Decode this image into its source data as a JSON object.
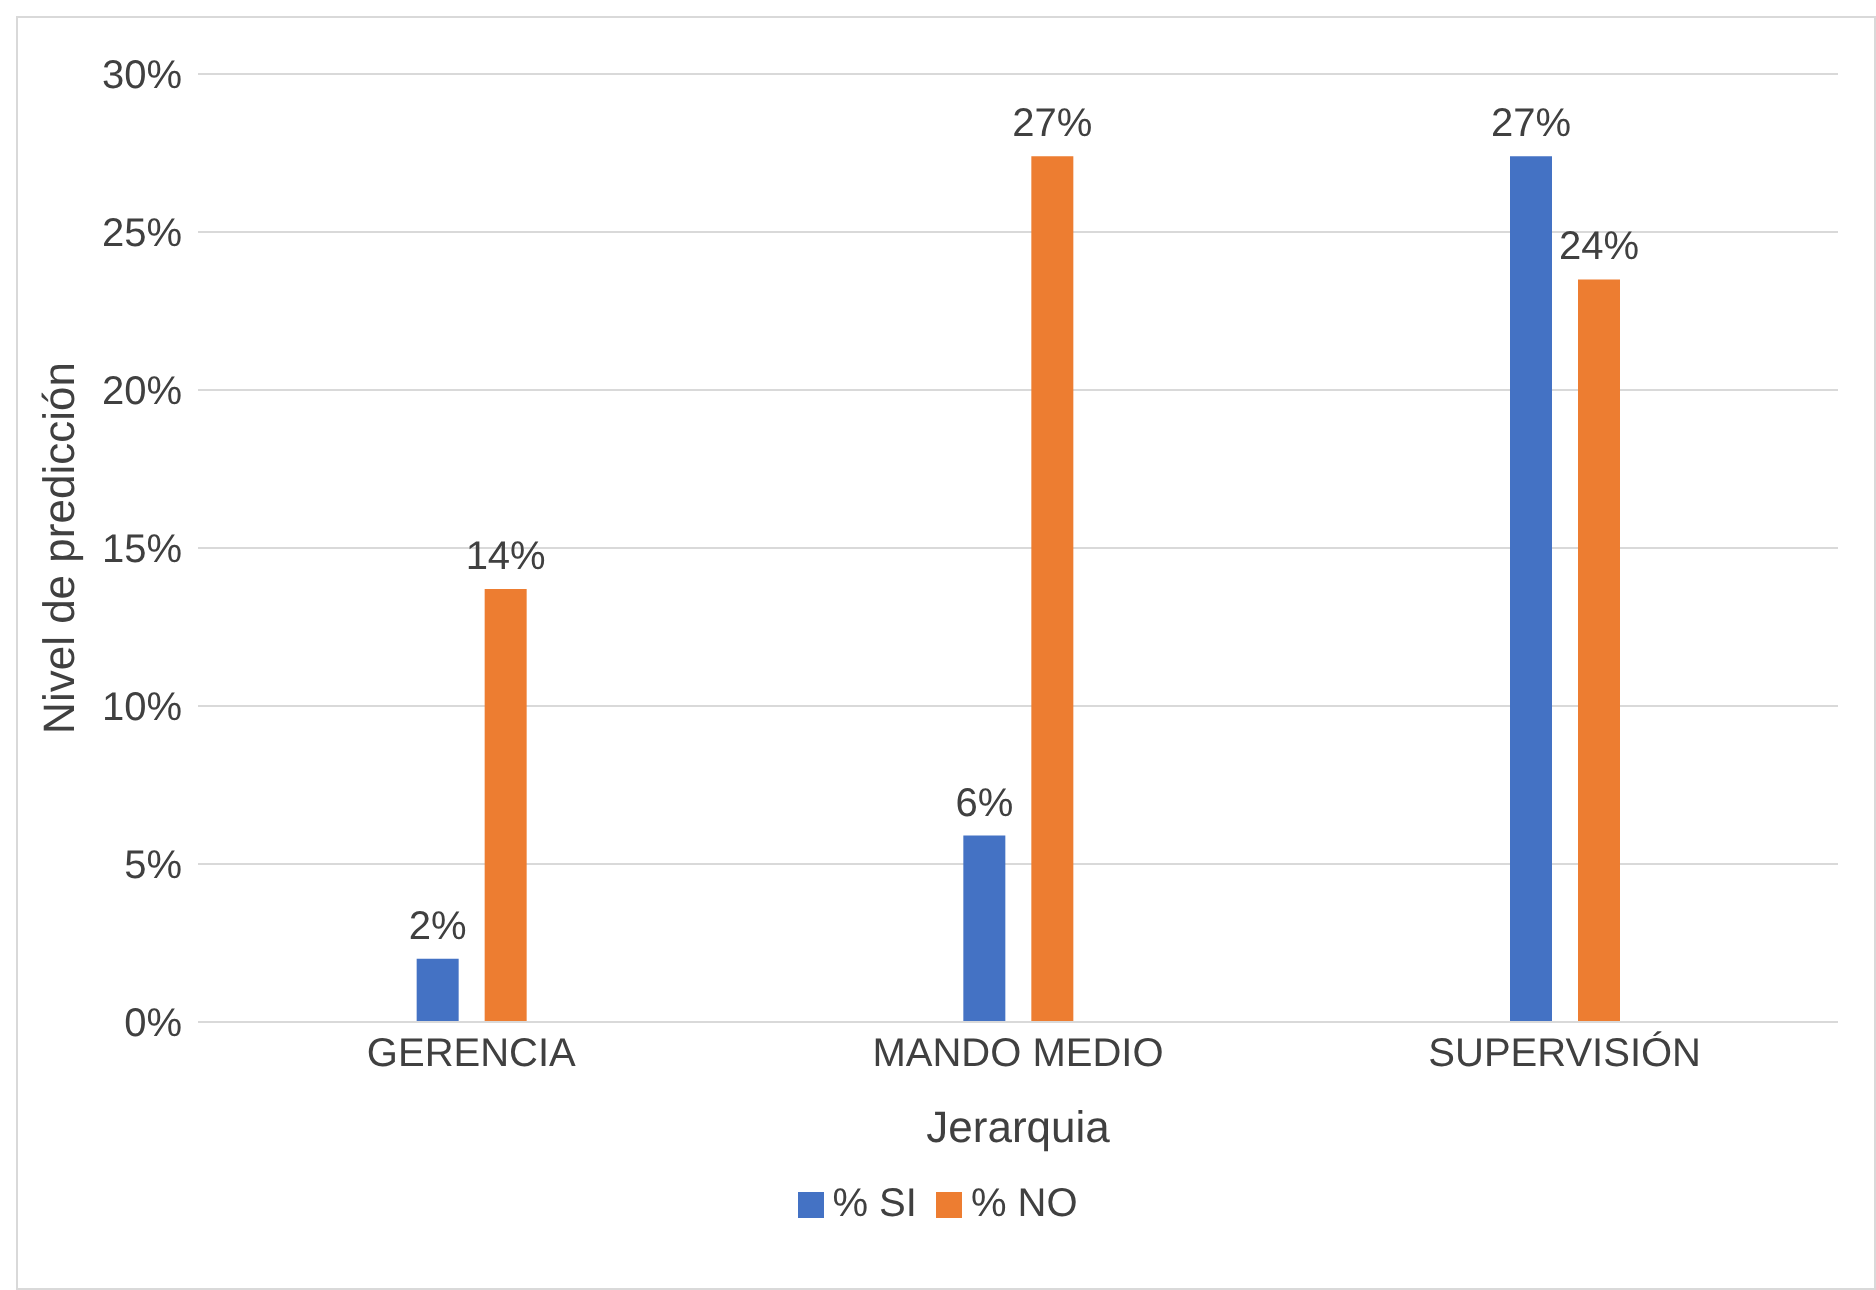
{
  "chart_data": {
    "type": "bar",
    "xlabel": "Jerarquia",
    "ylabel": "Nivel de predicción",
    "categories": [
      "GERENCIA",
      "MANDO MEDIO",
      "SUPERVISIÓN"
    ],
    "series": [
      {
        "name": "% SI",
        "color": "#4472c4",
        "values": [
          2.0,
          5.9,
          27.4
        ],
        "value_labels": [
          "2%",
          "6%",
          "27%"
        ]
      },
      {
        "name": "% NO",
        "color": "#ed7d31",
        "values": [
          13.7,
          27.4,
          23.5
        ],
        "value_labels": [
          "14%",
          "27%",
          "24%"
        ]
      }
    ],
    "ylim": [
      0,
      30
    ],
    "yticks": [
      {
        "value": 0,
        "label": "0%"
      },
      {
        "value": 5,
        "label": "5%"
      },
      {
        "value": 10,
        "label": "10%"
      },
      {
        "value": 15,
        "label": "15%"
      },
      {
        "value": 20,
        "label": "20%"
      },
      {
        "value": 25,
        "label": "25%"
      },
      {
        "value": 30,
        "label": "30%"
      }
    ],
    "grid": "y",
    "legend": "bottom"
  }
}
